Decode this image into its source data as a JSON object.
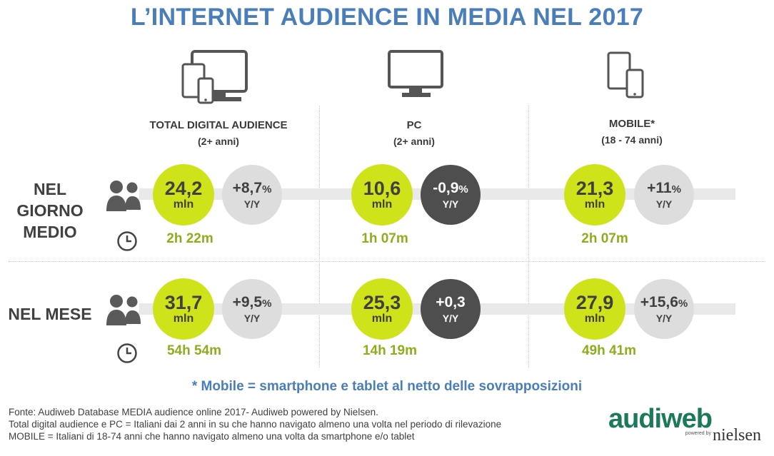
{
  "title": "L’INTERNET AUDIENCE IN MEDIA NEL 2017",
  "columns": [
    {
      "name": "TOTAL DIGITAL AUDIENCE",
      "sub": "(2+ anni)",
      "icon": "multi-device-icon"
    },
    {
      "name": "PC",
      "sub": "(2+ anni)",
      "icon": "monitor-icon"
    },
    {
      "name": "MOBILE*",
      "sub": "(18 - 74 anni)",
      "icon": "mobile-devices-icon"
    }
  ],
  "rows": [
    {
      "label": "NEL GIORNO MEDIO"
    },
    {
      "label": "NEL MESE"
    }
  ],
  "unit": "mln",
  "yy_label": "Y/Y",
  "colors": {
    "title": "#4a7ebb",
    "main_circle": "#cfe31a",
    "variation_light": "#dddddd",
    "variation_dark": "#4e4e4e",
    "time_text": "#8cae1c",
    "logo_green": "#1b7a5a"
  },
  "chart_data": {
    "type": "table",
    "columns": [
      "TOTAL DIGITAL AUDIENCE",
      "PC",
      "MOBILE*"
    ],
    "rows": [
      "NEL GIORNO MEDIO",
      "NEL MESE"
    ],
    "cells": [
      [
        {
          "value": "24,2",
          "variation": "+8,7",
          "pct": "%",
          "negative_style": false,
          "time": "2h 22m"
        },
        {
          "value": "10,6",
          "variation": "-0,9",
          "pct": "%",
          "negative_style": true,
          "time": "1h 07m"
        },
        {
          "value": "21,3",
          "variation": "+11",
          "pct": "%",
          "negative_style": false,
          "time": "2h 07m"
        }
      ],
      [
        {
          "value": "31,7",
          "variation": "+9,5",
          "pct": "%",
          "negative_style": false,
          "time": "54h 54m"
        },
        {
          "value": "25,3",
          "variation": "+0,3",
          "pct": "",
          "negative_style": true,
          "time": "14h 19m"
        },
        {
          "value": "27,9",
          "variation": "+15,6",
          "pct": "%",
          "negative_style": false,
          "time": "49h 41m"
        }
      ]
    ]
  },
  "footnote": "* Mobile = smartphone e tablet al netto delle sovrapposizioni",
  "sources": [
    "Fonte: Audiweb Database MEDIA audience online 2017- Audiweb powered by Nielsen.",
    "Total digital audience e PC = Italiani dai 2 anni in su che hanno navigato almeno una volta nel periodo di rilevazione",
    "MOBILE = Italiani di 18-74 anni che hanno navigato almeno una volta da smartphone e/o tablet"
  ],
  "logo": {
    "brand": "audiweb",
    "powered": "powered by",
    "partner": "nielsen"
  }
}
